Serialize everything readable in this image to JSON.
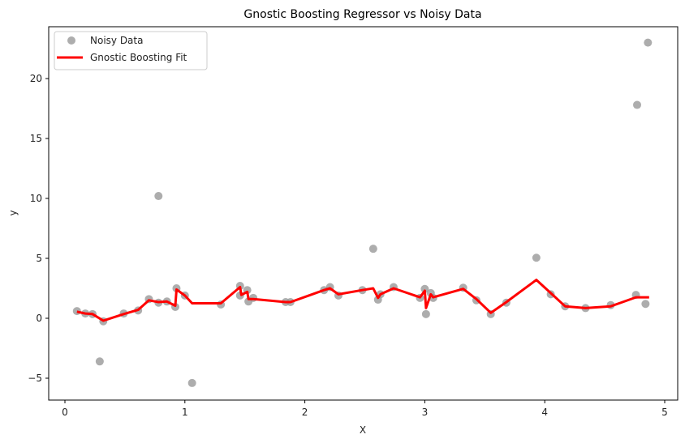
{
  "chart_data": {
    "type": "scatter",
    "title": "Gnostic Boosting Regressor vs Noisy Data",
    "xlabel": "X",
    "ylabel": "y",
    "xlim": [
      -0.13,
      5.1
    ],
    "ylim": [
      -6.9,
      24.2
    ],
    "xticks": [
      0,
      1,
      2,
      3,
      4,
      5
    ],
    "yticks": [
      -5,
      0,
      5,
      10,
      15,
      20
    ],
    "grid": false,
    "legend_position": "upper left",
    "legend": [
      "Noisy Data",
      "Gnostic Boosting Fit"
    ],
    "series": [
      {
        "name": "Noisy Data",
        "kind": "scatter",
        "color": "#999999",
        "points": [
          [
            0.1,
            0.6
          ],
          [
            0.17,
            0.4
          ],
          [
            0.23,
            0.35
          ],
          [
            0.29,
            -3.6
          ],
          [
            0.32,
            -0.25
          ],
          [
            0.49,
            0.4
          ],
          [
            0.61,
            0.65
          ],
          [
            0.7,
            1.6
          ],
          [
            0.78,
            10.2
          ],
          [
            0.78,
            1.3
          ],
          [
            0.85,
            1.4
          ],
          [
            0.92,
            0.95
          ],
          [
            0.93,
            2.5
          ],
          [
            1.0,
            1.9
          ],
          [
            1.06,
            -5.4
          ],
          [
            1.3,
            1.15
          ],
          [
            1.46,
            2.7
          ],
          [
            1.46,
            1.9
          ],
          [
            1.52,
            2.35
          ],
          [
            1.53,
            1.4
          ],
          [
            1.57,
            1.7
          ],
          [
            1.84,
            1.35
          ],
          [
            1.88,
            1.35
          ],
          [
            2.16,
            2.35
          ],
          [
            2.21,
            2.6
          ],
          [
            2.28,
            1.9
          ],
          [
            2.48,
            2.35
          ],
          [
            2.57,
            5.8
          ],
          [
            2.61,
            1.55
          ],
          [
            2.63,
            2.0
          ],
          [
            2.74,
            2.6
          ],
          [
            2.96,
            1.7
          ],
          [
            3.0,
            2.45
          ],
          [
            3.01,
            0.35
          ],
          [
            3.05,
            2.1
          ],
          [
            3.07,
            1.7
          ],
          [
            3.32,
            2.55
          ],
          [
            3.43,
            1.5
          ],
          [
            3.55,
            0.35
          ],
          [
            3.68,
            1.3
          ],
          [
            3.93,
            5.05
          ],
          [
            4.05,
            2.0
          ],
          [
            4.17,
            1.0
          ],
          [
            4.34,
            0.85
          ],
          [
            4.55,
            1.1
          ],
          [
            4.76,
            1.95
          ],
          [
            4.77,
            17.8
          ],
          [
            4.84,
            1.2
          ],
          [
            4.86,
            23.0
          ]
        ]
      },
      {
        "name": "Gnostic Boosting Fit",
        "kind": "line",
        "color": "#ff0000",
        "points": [
          [
            0.1,
            0.55
          ],
          [
            0.17,
            0.4
          ],
          [
            0.23,
            0.35
          ],
          [
            0.32,
            -0.2
          ],
          [
            0.49,
            0.35
          ],
          [
            0.61,
            0.7
          ],
          [
            0.7,
            1.5
          ],
          [
            0.78,
            1.35
          ],
          [
            0.85,
            1.4
          ],
          [
            0.92,
            1.05
          ],
          [
            0.93,
            2.4
          ],
          [
            1.0,
            1.9
          ],
          [
            1.06,
            1.25
          ],
          [
            1.3,
            1.25
          ],
          [
            1.46,
            2.6
          ],
          [
            1.47,
            1.95
          ],
          [
            1.52,
            2.2
          ],
          [
            1.53,
            1.6
          ],
          [
            1.57,
            1.6
          ],
          [
            1.84,
            1.35
          ],
          [
            1.88,
            1.35
          ],
          [
            2.16,
            2.35
          ],
          [
            2.21,
            2.5
          ],
          [
            2.28,
            2.0
          ],
          [
            2.48,
            2.35
          ],
          [
            2.57,
            2.5
          ],
          [
            2.61,
            1.7
          ],
          [
            2.63,
            2.0
          ],
          [
            2.74,
            2.5
          ],
          [
            2.96,
            1.75
          ],
          [
            3.0,
            2.3
          ],
          [
            3.01,
            0.85
          ],
          [
            3.05,
            2.0
          ],
          [
            3.07,
            1.75
          ],
          [
            3.32,
            2.45
          ],
          [
            3.43,
            1.6
          ],
          [
            3.55,
            0.45
          ],
          [
            3.68,
            1.35
          ],
          [
            3.93,
            3.2
          ],
          [
            4.05,
            2.1
          ],
          [
            4.17,
            1.0
          ],
          [
            4.34,
            0.85
          ],
          [
            4.55,
            1.0
          ],
          [
            4.76,
            1.75
          ],
          [
            4.87,
            1.75
          ]
        ]
      }
    ]
  }
}
